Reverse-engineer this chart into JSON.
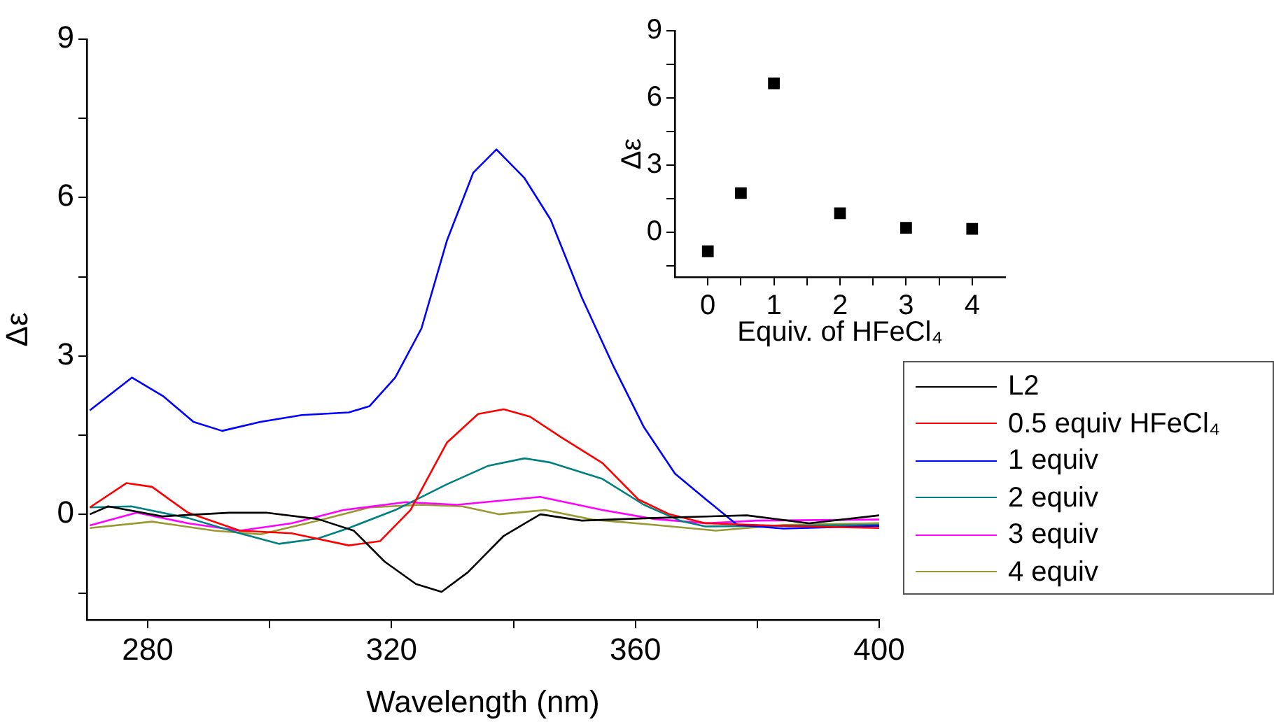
{
  "chart_data": [
    {
      "type": "line",
      "xlabel": "Wavelength (nm)",
      "ylabel": "Δε",
      "xlim": [
        270,
        400
      ],
      "ylim": [
        -2,
        9
      ],
      "xticks": [
        280,
        {
          "value": 300,
          "label": null
        },
        320,
        {
          "value": 340,
          "label": null
        },
        360,
        {
          "value": 380,
          "label": null
        },
        400
      ],
      "yticks": [
        {
          "value": -1.5,
          "label": null
        },
        0,
        {
          "value": 1.5,
          "label": null
        },
        3,
        {
          "value": 4.5,
          "label": null
        },
        6,
        {
          "value": 7.5,
          "label": null
        },
        9
      ],
      "grid": false,
      "legend": "right",
      "marker": "none",
      "line_style": "solid",
      "series": [
        {
          "name": "L2",
          "color": "#000000",
          "x": [
            270.5,
            273.5,
            282.4,
            293.4,
            299.4,
            307.9,
            313.8,
            318.9,
            324,
            328.2,
            332.5,
            338.4,
            344.4,
            351.2,
            363.1,
            378.3,
            388.5,
            400
          ],
          "values": [
            0,
            0.15,
            -0.04,
            0.03,
            0.03,
            -0.09,
            -0.31,
            -0.9,
            -1.32,
            -1.47,
            -1.1,
            -0.41,
            0,
            -0.12,
            -0.07,
            -0.02,
            -0.17,
            -0.02
          ]
        },
        {
          "name": "0.5 equiv HFeCl₄",
          "color": "#ff0000",
          "x": [
            270.5,
            276.5,
            280.7,
            286.6,
            295.1,
            303.6,
            313,
            318.1,
            323.1,
            329.1,
            334.2,
            338.4,
            342.7,
            347.8,
            354.6,
            360.5,
            365.6,
            371.5,
            384.3,
            400
          ],
          "values": [
            0.13,
            0.59,
            0.52,
            0.03,
            -0.31,
            -0.36,
            -0.59,
            -0.51,
            0.08,
            1.36,
            1.9,
            1.99,
            1.85,
            1.46,
            0.97,
            0.28,
            0,
            -0.17,
            -0.22,
            -0.26
          ]
        },
        {
          "name": "1 equiv",
          "color": "#0000ff",
          "x": [
            270.5,
            277.4,
            282.5,
            287.5,
            292.2,
            298.5,
            305.3,
            313,
            316.4,
            320.6,
            324.9,
            329.1,
            333.4,
            337.2,
            341.8,
            346.1,
            351.2,
            356.3,
            361.4,
            366.5,
            371.6,
            376.7,
            384.3,
            400
          ],
          "values": [
            1.97,
            2.59,
            2.24,
            1.75,
            1.58,
            1.75,
            1.88,
            1.93,
            2.05,
            2.59,
            3.52,
            5.19,
            6.47,
            6.91,
            6.37,
            5.58,
            4.11,
            2.83,
            1.65,
            0.77,
            0.28,
            -0.2,
            -0.27,
            -0.22
          ]
        },
        {
          "name": "2 equiv",
          "color": "#008080",
          "x": [
            270.5,
            277.3,
            286.6,
            295.1,
            301.5,
            307.9,
            313,
            320.6,
            329.1,
            335.9,
            341.8,
            346.1,
            354.6,
            361.4,
            367.3,
            371.5,
            400
          ],
          "values": [
            0.13,
            0.15,
            -0.07,
            -0.36,
            -0.56,
            -0.46,
            -0.26,
            0.08,
            0.57,
            0.92,
            1.06,
            0.98,
            0.67,
            0.18,
            -0.12,
            -0.23,
            -0.2
          ]
        },
        {
          "name": "3 equiv",
          "color": "#ff00ff",
          "x": [
            270.5,
            278.2,
            286.6,
            295.1,
            303.6,
            312.1,
            322.3,
            330.8,
            344.4,
            354.6,
            363.1,
            371.5,
            380,
            400
          ],
          "values": [
            -0.21,
            0.03,
            -0.17,
            -0.31,
            -0.17,
            0.08,
            0.23,
            0.18,
            0.33,
            0.08,
            -0.09,
            -0.17,
            -0.12,
            -0.1
          ]
        },
        {
          "name": "4 equiv",
          "color": "#999933",
          "x": [
            270.5,
            280.7,
            290.9,
            298.5,
            307.9,
            316.4,
            324.9,
            331.6,
            337.6,
            345.2,
            352.9,
            363.1,
            373.2,
            384.3,
            400
          ],
          "values": [
            -0.26,
            -0.14,
            -0.31,
            -0.38,
            -0.12,
            0.13,
            0.18,
            0.15,
            0,
            0.08,
            -0.1,
            -0.2,
            -0.31,
            -0.2,
            -0.17
          ]
        }
      ]
    },
    {
      "type": "scatter",
      "xlabel": "Equiv. of HFeCl₄",
      "ylabel": "Δε",
      "xlim": [
        -0.5,
        4.5
      ],
      "ylim": [
        -2,
        9
      ],
      "xticks": [
        0,
        {
          "value": 0.5,
          "label": null
        },
        1,
        {
          "value": 1.5,
          "label": null
        },
        2,
        {
          "value": 2.5,
          "label": null
        },
        3,
        {
          "value": 3.5,
          "label": null
        },
        4
      ],
      "yticks": [
        {
          "value": -1.5,
          "label": null
        },
        0,
        {
          "value": 1.5,
          "label": null
        },
        3,
        {
          "value": 4.5,
          "label": null
        },
        6,
        {
          "value": 7.5,
          "label": null
        },
        9
      ],
      "grid": false,
      "marker": "square",
      "series": [
        {
          "color": "#000000",
          "x": [
            0,
            0.5,
            1,
            2,
            3,
            4
          ],
          "values": [
            -0.85,
            1.75,
            6.65,
            0.85,
            0.2,
            0.15
          ]
        }
      ]
    }
  ]
}
